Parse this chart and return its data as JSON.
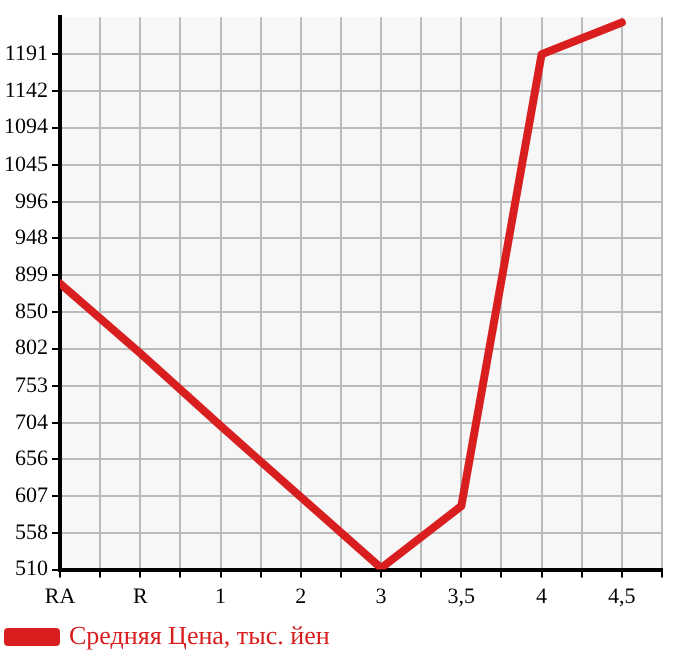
{
  "chart_data": {
    "type": "line",
    "categories": [
      "RA",
      "R",
      "1",
      "2",
      "3",
      "3,5",
      "4",
      "4,5"
    ],
    "series": [
      {
        "name": "Средняя Цена, тыс. йен",
        "color": "#d81e1e",
        "values": [
          888,
          796,
          700,
          606,
          512,
          594,
          1191,
          1233
        ]
      }
    ],
    "ylim": [
      510,
      1240
    ],
    "yticks": [
      510,
      558,
      607,
      656,
      704,
      753,
      802,
      850,
      899,
      948,
      996,
      1045,
      1094,
      1142,
      1191
    ],
    "grid": true,
    "legend": "bottom left",
    "marker": "none",
    "line_style": "solid"
  }
}
